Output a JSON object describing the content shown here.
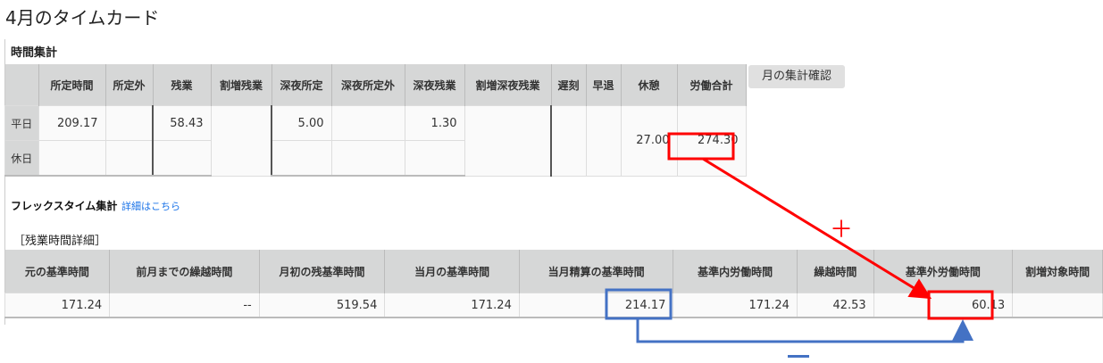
{
  "page_title": "4月のタイムカード",
  "summary": {
    "title": "時間集計",
    "headers": [
      "",
      "所定時間",
      "所定外",
      "残業",
      "割増残業",
      "深夜所定",
      "深夜所定外",
      "深夜残業",
      "割増深夜残業",
      "遅刻",
      "早退",
      "休憩",
      "労働合計"
    ],
    "weekday": {
      "label": "平日",
      "所定時間": "209.17",
      "所定外": "",
      "残業": "58.43",
      "深夜所定": "5.00",
      "深夜所定外": "",
      "深夜残業": "1.30"
    },
    "holiday": {
      "label": "休日"
    },
    "merged": {
      "割増残業": "",
      "割増深夜残業": "",
      "遅刻": "",
      "早退": "",
      "休憩": "27.00",
      "労働合計": "274.30"
    },
    "button": "月の集計確認"
  },
  "flex": {
    "title": "フレックスタイム集計",
    "link": "詳細はこちら",
    "subtitle": "［残業時間詳細］",
    "headers": [
      "元の基準時間",
      "前月までの繰越時間",
      "月初の残基準時間",
      "当月の基準時間",
      "当月精算の基準時間",
      "基準内労働時間",
      "繰越時間",
      "基準外労働時間",
      "割増対象時間"
    ],
    "values": [
      "171.24",
      "--",
      "519.54",
      "171.24",
      "214.17",
      "171.24",
      "42.53",
      "60.13",
      ""
    ]
  },
  "annotations": {
    "plus": "＋",
    "minus": "－",
    "red": "#ff0000",
    "blue": "#4472c4"
  }
}
